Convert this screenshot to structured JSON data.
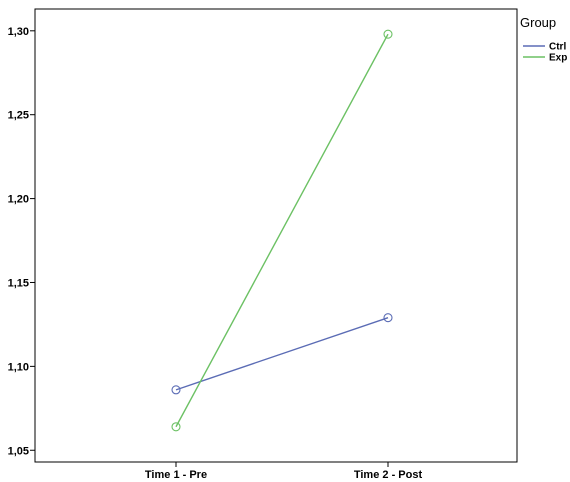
{
  "chart_data": {
    "type": "line",
    "categories": [
      "Time 1 - Pre",
      "Time 2 - Post"
    ],
    "series": [
      {
        "name": "Ctrl",
        "values": [
          1.086,
          1.129
        ],
        "color": "#5b6cb5"
      },
      {
        "name": "Exp",
        "values": [
          1.064,
          1.298
        ],
        "color": "#6cc164"
      }
    ],
    "yticks": [
      "1,05",
      "1,10",
      "1,15",
      "1,20",
      "1,25",
      "1,30"
    ],
    "ytick_values": [
      1.05,
      1.1,
      1.15,
      1.2,
      1.25,
      1.3
    ],
    "ylim": [
      1.043,
      1.313
    ],
    "legend_title": "Group",
    "legend_position": "top-right",
    "grid": false,
    "marker": "open-circle"
  }
}
